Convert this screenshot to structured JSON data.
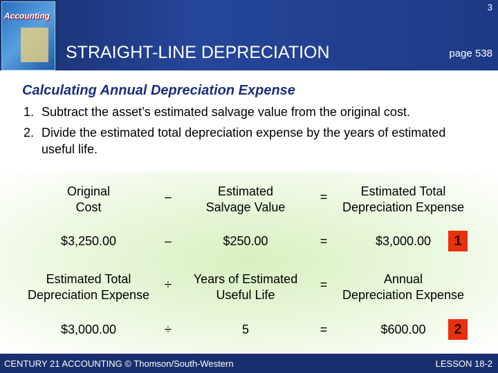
{
  "header": {
    "slide_number": "3",
    "book_title": "Accounting",
    "title": "STRAIGHT-LINE DEPRECIATION",
    "page": "page 538"
  },
  "heading": "Calculating Annual Depreciation Expense",
  "steps": [
    {
      "marker": "1.",
      "text": "Subtract the asset’s estimated salvage value from the original cost."
    },
    {
      "marker": "2.",
      "text": "Divide the estimated total depreciation expense by the years of estimated useful life."
    }
  ],
  "equations": [
    {
      "terms": [
        [
          "Original",
          "Cost"
        ],
        [
          "Estimated",
          "Salvage Value"
        ],
        [
          "Estimated Total",
          "Depreciation Expense"
        ]
      ],
      "operators": [
        "–",
        "="
      ],
      "amounts": [
        "$3,250.00",
        "$250.00",
        "$3,000.00"
      ],
      "amount_operators": [
        "–",
        "="
      ],
      "step": "1"
    },
    {
      "terms": [
        [
          "Estimated Total",
          "Depreciation Expense"
        ],
        [
          "Years of Estimated",
          "Useful Life"
        ],
        [
          "Annual",
          "Depreciation Expense"
        ]
      ],
      "operators": [
        "÷",
        "="
      ],
      "amounts": [
        "$3,000.00",
        "5",
        "$600.00"
      ],
      "amount_operators": [
        "÷",
        "="
      ],
      "step": "2"
    }
  ],
  "footer": {
    "left": "CENTURY 21 ACCOUNTING © Thomson/South-Western",
    "right": "LESSON 18-2"
  }
}
